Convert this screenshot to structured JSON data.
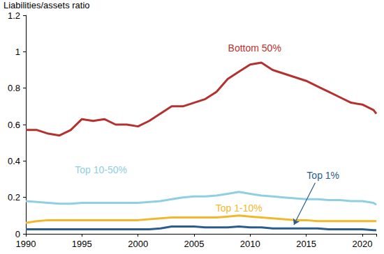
{
  "chart_data": {
    "type": "line",
    "y_label": "Liabilities/assets ratio",
    "x": [
      1990,
      1991,
      1992,
      1993,
      1994,
      1995,
      1996,
      1997,
      1998,
      1999,
      2000,
      2001,
      2002,
      2003,
      2004,
      2005,
      2006,
      2007,
      2008,
      2009,
      2010,
      2011,
      2012,
      2013,
      2014,
      2015,
      2016,
      2017,
      2018,
      2019,
      2020,
      2021,
      2021.25
    ],
    "series": [
      {
        "name": "Bottom 50%",
        "color": "#b5312f",
        "values": [
          0.57,
          0.57,
          0.55,
          0.54,
          0.57,
          0.63,
          0.62,
          0.63,
          0.6,
          0.6,
          0.59,
          0.62,
          0.66,
          0.7,
          0.7,
          0.72,
          0.74,
          0.78,
          0.85,
          0.89,
          0.93,
          0.94,
          0.9,
          0.88,
          0.86,
          0.84,
          0.81,
          0.78,
          0.75,
          0.72,
          0.71,
          0.68,
          0.66
        ]
      },
      {
        "name": "Top 10-50%",
        "color": "#8fcfe3",
        "values": [
          0.18,
          0.175,
          0.17,
          0.165,
          0.165,
          0.17,
          0.17,
          0.17,
          0.17,
          0.17,
          0.17,
          0.175,
          0.18,
          0.19,
          0.2,
          0.205,
          0.205,
          0.21,
          0.22,
          0.23,
          0.22,
          0.21,
          0.205,
          0.2,
          0.195,
          0.19,
          0.19,
          0.185,
          0.185,
          0.18,
          0.18,
          0.17,
          0.16
        ]
      },
      {
        "name": "Top 1-10%",
        "color": "#f2b82d",
        "values": [
          0.06,
          0.07,
          0.075,
          0.075,
          0.075,
          0.075,
          0.075,
          0.075,
          0.075,
          0.075,
          0.075,
          0.08,
          0.085,
          0.09,
          0.09,
          0.09,
          0.09,
          0.09,
          0.095,
          0.1,
          0.095,
          0.09,
          0.085,
          0.08,
          0.075,
          0.075,
          0.07,
          0.07,
          0.07,
          0.07,
          0.07,
          0.07,
          0.07
        ]
      },
      {
        "name": "Top 1%",
        "color": "#2c5c8a",
        "values": [
          0.025,
          0.025,
          0.025,
          0.025,
          0.025,
          0.025,
          0.025,
          0.025,
          0.025,
          0.025,
          0.025,
          0.025,
          0.03,
          0.04,
          0.04,
          0.04,
          0.035,
          0.035,
          0.035,
          0.04,
          0.035,
          0.035,
          0.03,
          0.03,
          0.03,
          0.03,
          0.03,
          0.025,
          0.025,
          0.025,
          0.025,
          0.02,
          0.02
        ]
      }
    ],
    "annotations": [
      {
        "text": "Bottom 50%",
        "x": 2010.4,
        "y": 1.02
      },
      {
        "text": "Top 10-50%",
        "x": 1996.7,
        "y": 0.35
      },
      {
        "text": "Top 1-10%",
        "x": 2009,
        "y": 0.14
      },
      {
        "text": "Top 1%",
        "x": 2016.5,
        "y": 0.32,
        "arrow": {
          "from": [
            2015.8,
            0.28
          ],
          "to": [
            2013.9,
            0.05
          ]
        }
      }
    ],
    "xlim": [
      1990,
      2021.25
    ],
    "xticks": [
      1990,
      1995,
      2000,
      2005,
      2010,
      2015,
      2020
    ],
    "ylim": [
      0,
      1.2
    ],
    "yticks": [
      0,
      0.2,
      0.4,
      0.6,
      0.8,
      1,
      1.2
    ],
    "grid": false
  }
}
